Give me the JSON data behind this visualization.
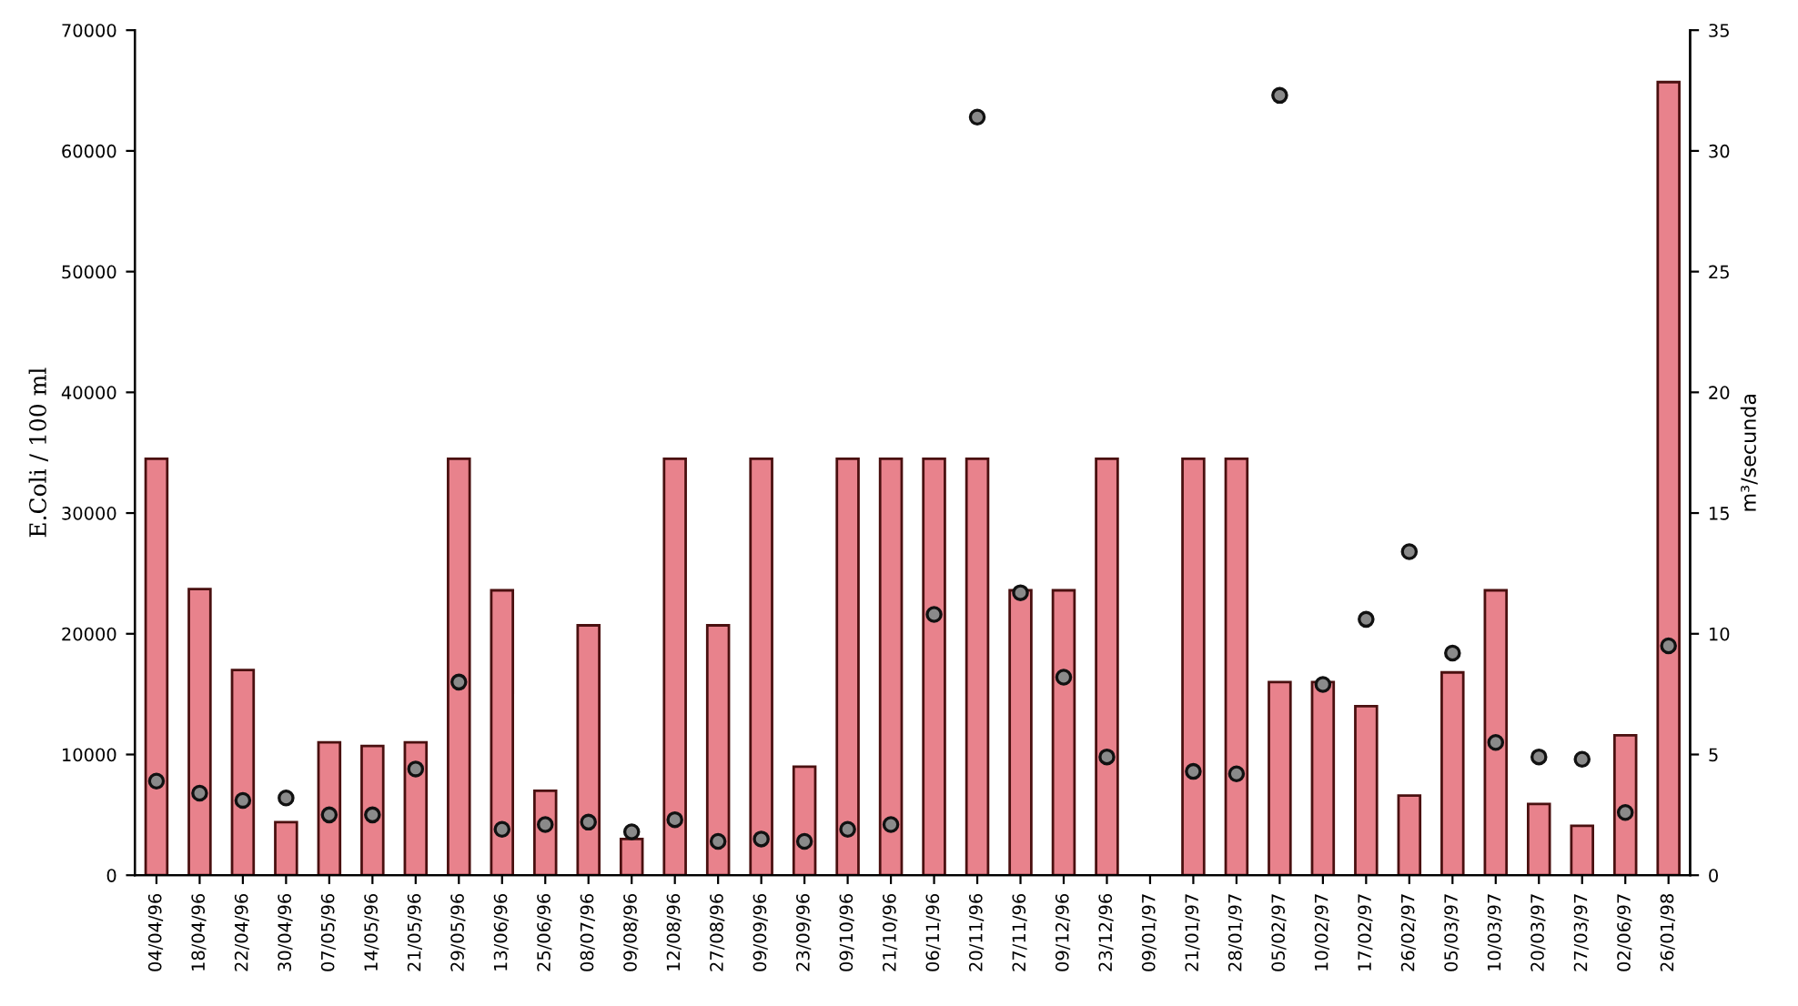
{
  "chart_data": {
    "type": "bar",
    "ylabel": "E.Coli / 100 ml",
    "y2label": "m³/secunda",
    "categories": [
      "04/04/96",
      "18/04/96",
      "22/04/96",
      "30/04/96",
      "07/05/96",
      "14/05/96",
      "21/05/96",
      "29/05/96",
      "13/06/96",
      "25/06/96",
      "08/07/96",
      "09/08/96",
      "12/08/96",
      "27/08/96",
      "09/09/96",
      "23/09/96",
      "09/10/96",
      "21/10/96",
      "06/11/96",
      "20/11/96",
      "27/11/96",
      "09/12/96",
      "23/12/96",
      "09/01/97",
      "21/01/97",
      "28/01/97",
      "05/02/97",
      "10/02/97",
      "17/02/97",
      "26/02/97",
      "05/03/97",
      "10/03/97",
      "20/03/97",
      "27/03/97",
      "02/06/97",
      "26/01/98"
    ],
    "series": [
      {
        "color": "#e8828c",
        "values": [
          34500,
          23700,
          17000,
          4400,
          11000,
          10700,
          11000,
          34500,
          23600,
          7000,
          20700,
          3000,
          34500,
          20700,
          34500,
          9000,
          34500,
          34500,
          34500,
          34500,
          23600,
          23600,
          34500,
          null,
          34500,
          34500,
          16000,
          16000,
          14000,
          6600,
          16800,
          23600,
          5900,
          4100,
          11600,
          65700
        ]
      },
      {
        "type": "scatter",
        "axis": "y2",
        "color": "#8a8a8a",
        "marker": "circle",
        "values": [
          3.9,
          3.4,
          3.1,
          3.2,
          2.5,
          2.5,
          4.4,
          8,
          1.9,
          2.1,
          2.2,
          1.8,
          2.3,
          1.4,
          1.5,
          1.4,
          1.9,
          2.1,
          10.8,
          31.4,
          11.7,
          8.2,
          4.9,
          null,
          4.3,
          4.2,
          32.3,
          7.9,
          10.6,
          13.4,
          9.2,
          5.5,
          4.9,
          4.8,
          2.6,
          9.5
        ]
      }
    ],
    "ylim": [
      0,
      70000
    ],
    "yticks": [
      0,
      10000,
      20000,
      30000,
      40000,
      50000,
      60000,
      70000
    ],
    "y2lim": [
      0,
      35
    ],
    "y2ticks": [
      0,
      5,
      10,
      15,
      20,
      25,
      30,
      35
    ],
    "grid": false,
    "legend": false
  }
}
